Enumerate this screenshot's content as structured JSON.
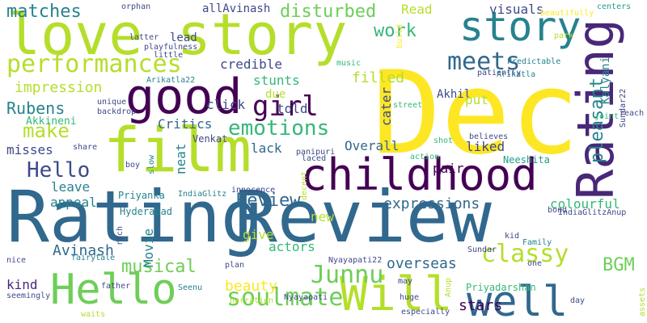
{
  "palette": {
    "dark_purple": "#440154",
    "purple": "#482878",
    "indigo": "#3e4989",
    "blue": "#31688e",
    "steel_blue": "#26828e",
    "teal": "#1f9e89",
    "green": "#35b779",
    "light_green": "#6ece58",
    "lime": "#b5de2b",
    "yellow": "#fde725"
  },
  "words": [
    {
      "text": "Dec",
      "color": "#fde725"
    },
    {
      "text": "Rating",
      "color": "#31688e"
    },
    {
      "text": "Review",
      "color": "#31688e"
    },
    {
      "text": "love story",
      "color": "#b5de2b"
    },
    {
      "text": "film",
      "color": "#b5de2b"
    },
    {
      "text": "childhood",
      "color": "#440154"
    },
    {
      "text": "good",
      "color": "#440154"
    },
    {
      "text": "Rating",
      "color": "#482878"
    },
    {
      "text": "story",
      "color": "#26828e"
    },
    {
      "text": "Hello",
      "color": "#6ece58"
    },
    {
      "text": "Will",
      "color": "#b5de2b"
    },
    {
      "text": "well",
      "color": "#31688e"
    },
    {
      "text": "performances",
      "color": "#b5de2b"
    },
    {
      "text": "girl",
      "color": "#440154"
    },
    {
      "text": "meets",
      "color": "#31688e"
    },
    {
      "text": "emotions",
      "color": "#35b779"
    },
    {
      "text": "make",
      "color": "#b5de2b"
    },
    {
      "text": "Hello",
      "color": "#3e4989"
    },
    {
      "text": "soulmate",
      "color": "#6ece58"
    },
    {
      "text": "Junnu",
      "color": "#6ece58"
    },
    {
      "text": "classy",
      "color": "#b5de2b"
    },
    {
      "text": "matches",
      "color": "#26828e"
    },
    {
      "text": "disturbed",
      "color": "#6ece58"
    },
    {
      "text": "work",
      "color": "#35b779"
    },
    {
      "text": "pleasant",
      "color": "#26828e"
    },
    {
      "text": "Review",
      "color": "#31688e"
    },
    {
      "text": "BGM",
      "color": "#6ece58"
    },
    {
      "text": "musical",
      "color": "#6ece58"
    },
    {
      "text": "Rubens",
      "color": "#26828e"
    },
    {
      "text": "impression",
      "color": "#b5de2b"
    },
    {
      "text": "Critics",
      "color": "#31688e"
    },
    {
      "text": "Overall",
      "color": "#31688e"
    },
    {
      "text": "expressions",
      "color": "#31688e"
    },
    {
      "text": "overseas",
      "color": "#31688e"
    },
    {
      "text": "Avinash",
      "color": "#31688e"
    },
    {
      "text": "beauty",
      "color": "#fde725"
    },
    {
      "text": "stars",
      "color": "#440154"
    },
    {
      "text": "actors",
      "color": "#35b779"
    },
    {
      "text": "colourful",
      "color": "#35b779"
    },
    {
      "text": "filled",
      "color": "#b5de2b"
    },
    {
      "text": "credible",
      "color": "#3e4989"
    },
    {
      "text": "stunts",
      "color": "#35b779"
    },
    {
      "text": "visuals",
      "color": "#3e4989"
    },
    {
      "text": "Read",
      "color": "#b5de2b"
    },
    {
      "text": "lead",
      "color": "#3e4989"
    },
    {
      "text": "allAvinash",
      "color": "#3e4989"
    },
    {
      "text": "Akhil",
      "color": "#3e4989"
    },
    {
      "text": "Akkineni",
      "color": "#35b779"
    },
    {
      "text": "click",
      "color": "#3e4989"
    },
    {
      "text": "told",
      "color": "#3e4989"
    },
    {
      "text": "cater",
      "color": "#3e4989"
    },
    {
      "text": "put",
      "color": "#b5de2b"
    },
    {
      "text": "due",
      "color": "#b5de2b"
    },
    {
      "text": "Kalyani",
      "color": "#26828e"
    },
    {
      "text": "misses",
      "color": "#3e4989"
    },
    {
      "text": "lack",
      "color": "#31688e"
    },
    {
      "text": "pair",
      "color": "#440154"
    },
    {
      "text": "liked",
      "color": "#3e4989"
    },
    {
      "text": "neat",
      "color": "#26828e"
    },
    {
      "text": "leave",
      "color": "#26828e"
    },
    {
      "text": "appeal",
      "color": "#26828e"
    },
    {
      "text": "new",
      "color": "#b5de2b"
    },
    {
      "text": "give",
      "color": "#b5de2b"
    },
    {
      "text": "Movie",
      "color": "#26828e"
    },
    {
      "text": "kind",
      "color": "#482878"
    },
    {
      "text": "Venkat",
      "color": "#3e4989"
    },
    {
      "text": "Neeshita",
      "color": "#1f9e89"
    },
    {
      "text": "Priyanka",
      "color": "#26828e"
    },
    {
      "text": "Hyderabad",
      "color": "#26828e"
    },
    {
      "text": "Priyadarshan",
      "color": "#35b779"
    },
    {
      "text": "Nyayapati22",
      "color": "#3e4989"
    },
    {
      "text": "Nyayapati",
      "color": "#3e4989"
    },
    {
      "text": "IndiaGlitz",
      "color": "#26828e"
    },
    {
      "text": "IndiaGlitzAnup",
      "color": "#3e4989"
    },
    {
      "text": "Arikatla22",
      "color": "#26828e"
    },
    {
      "text": "Arikatla",
      "color": "#26828e"
    },
    {
      "text": "Sundar22",
      "color": "#3e4989"
    },
    {
      "text": "Sundar",
      "color": "#3e4989"
    },
    {
      "text": "orphan",
      "color": "#3e4989"
    },
    {
      "text": "beautifully",
      "color": "#fde725"
    },
    {
      "text": "centers",
      "color": "#1f9e89"
    },
    {
      "text": "latter",
      "color": "#3e4989"
    },
    {
      "text": "playfulness",
      "color": "#3e4989"
    },
    {
      "text": "little",
      "color": "#3e4989"
    },
    {
      "text": "music",
      "color": "#35b779"
    },
    {
      "text": "Predictable",
      "color": "#26828e"
    },
    {
      "text": "patiently",
      "color": "#3e4989"
    },
    {
      "text": "park",
      "color": "#b5de2b"
    },
    {
      "text": "reach",
      "color": "#3e4989"
    },
    {
      "text": "joint",
      "color": "#35b779"
    },
    {
      "text": "unique",
      "color": "#3e4989"
    },
    {
      "text": "backdrop",
      "color": "#3e4989"
    },
    {
      "text": "build",
      "color": "#fde725"
    },
    {
      "text": "street",
      "color": "#35b779"
    },
    {
      "text": "believes",
      "color": "#3e4989"
    },
    {
      "text": "shot",
      "color": "#35b779"
    },
    {
      "text": "panipuri",
      "color": "#3e4989"
    },
    {
      "text": "laced",
      "color": "#3e4989"
    },
    {
      "text": "action",
      "color": "#35b779"
    },
    {
      "text": "share",
      "color": "#3e4989"
    },
    {
      "text": "slow",
      "color": "#26828e"
    },
    {
      "text": "boy",
      "color": "#3e4989"
    },
    {
      "text": "decent",
      "color": "#b5de2b"
    },
    {
      "text": "innocence",
      "color": "#3e4989"
    },
    {
      "text": "rich",
      "color": "#3e4989"
    },
    {
      "text": "bond",
      "color": "#3e4989"
    },
    {
      "text": "kid",
      "color": "#3e4989"
    },
    {
      "text": "Family",
      "color": "#26828e"
    },
    {
      "text": "nice",
      "color": "#3e4989"
    },
    {
      "text": "fairytale",
      "color": "#26828e"
    },
    {
      "text": "plan",
      "color": "#3e4989"
    },
    {
      "text": "father",
      "color": "#3e4989"
    },
    {
      "text": "seemingly",
      "color": "#3e4989"
    },
    {
      "text": "waits",
      "color": "#b5de2b"
    },
    {
      "text": "Seenu",
      "color": "#26828e"
    },
    {
      "text": "narration",
      "color": "#b5de2b"
    },
    {
      "text": "may",
      "color": "#3e4989"
    },
    {
      "text": "huge",
      "color": "#3e4989"
    },
    {
      "text": "especially",
      "color": "#3e4989"
    },
    {
      "text": "day",
      "color": "#3e4989"
    },
    {
      "text": "one",
      "color": "#3e4989"
    },
    {
      "text": "Anup",
      "color": "#b5de2b"
    },
    {
      "text": "assets",
      "color": "#b5de2b"
    }
  ]
}
